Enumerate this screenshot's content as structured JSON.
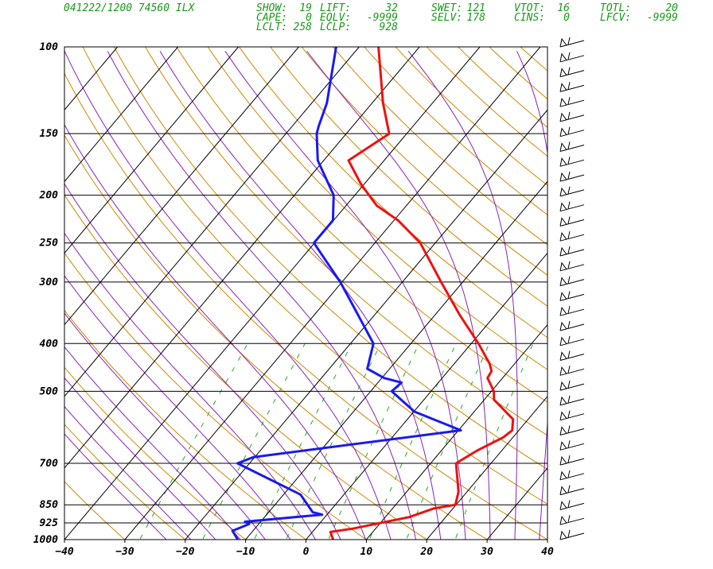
{
  "header": {
    "station_line": "041222/1200 74560  ILX",
    "rows": [
      [
        {
          "k": "SHOW:",
          "v": "19"
        },
        {
          "k": "LIFT:",
          "v": "32"
        },
        {
          "k": "SWET:",
          "v": "121"
        },
        {
          "k": "VTOT:",
          "v": "16"
        },
        {
          "k": "TOTL:",
          "v": "20"
        }
      ],
      [
        {
          "k": "CAPE:",
          "v": "0"
        },
        {
          "k": "EQLV:",
          "v": "-9999"
        },
        {
          "k": "SELV:",
          "v": "178"
        },
        {
          "k": "CINS:",
          "v": "0"
        },
        {
          "k": "LFCV:",
          "v": "-9999"
        }
      ],
      [
        {
          "k": "LCLT:",
          "v": "258"
        },
        {
          "k": "LCLP:",
          "v": "928"
        }
      ]
    ]
  },
  "chart_data": {
    "type": "line",
    "subtype": "skew-T log-P sounding",
    "x_axis": {
      "label": "",
      "range": [
        -40,
        40
      ],
      "ticks": [
        -40,
        -30,
        -20,
        -10,
        0,
        10,
        20,
        30,
        40
      ],
      "unit": "°C"
    },
    "y_axis": {
      "label": "",
      "scale": "log",
      "range": [
        1000,
        100
      ],
      "ticks": [
        1000,
        925,
        850,
        700,
        500,
        400,
        300,
        250,
        200,
        150,
        100
      ],
      "unit": "hPa"
    },
    "grid": true,
    "background_lines": [
      "skewed isotherms (black)",
      "dry adiabats (orange)",
      "moist adiabats (purple)",
      "mixing ratio lines (green dashed)"
    ],
    "colors": {
      "temperature": "#ee1111",
      "dewpoint": "#1a1aee",
      "isotherm": "#000000",
      "dry_adiabat": "#cc8800",
      "moist_adiabat": "#8822bb",
      "mixing_ratio": "#22aa22",
      "header_text": "#1a9a1a"
    },
    "series": [
      {
        "role": "temperature",
        "points": [
          [
            1000,
            4.5
          ],
          [
            965,
            3.0
          ],
          [
            950,
            6.2
          ],
          [
            900,
            14.0
          ],
          [
            865,
            16.8
          ],
          [
            850,
            19.9
          ],
          [
            800,
            18.6
          ],
          [
            700,
            14.2
          ],
          [
            660,
            15.9
          ],
          [
            620,
            18.4
          ],
          [
            600,
            18.9
          ],
          [
            570,
            17.5
          ],
          [
            520,
            11.6
          ],
          [
            500,
            10.4
          ],
          [
            480,
            8.5
          ],
          [
            470,
            7.5
          ],
          [
            455,
            7.2
          ],
          [
            440,
            5.9
          ],
          [
            400,
            1.2
          ],
          [
            350,
            -5.9
          ],
          [
            300,
            -13.6
          ],
          [
            250,
            -22.5
          ],
          [
            225,
            -29.3
          ],
          [
            210,
            -34.9
          ],
          [
            190,
            -40.5
          ],
          [
            170,
            -45.9
          ],
          [
            150,
            -42.9
          ],
          [
            130,
            -48.2
          ],
          [
            100,
            -56.8
          ]
        ]
      },
      {
        "role": "dewpoint",
        "points": [
          [
            1000,
            -11.3
          ],
          [
            960,
            -13.4
          ],
          [
            930,
            -11.6
          ],
          [
            920,
            -12.6
          ],
          [
            890,
            -0.8
          ],
          [
            880,
            -2.7
          ],
          [
            810,
            -7.2
          ],
          [
            700,
            -22.0
          ],
          [
            680,
            -20.2
          ],
          [
            600,
            10.4
          ],
          [
            550,
            0.1
          ],
          [
            500,
            -6.5
          ],
          [
            480,
            -6.1
          ],
          [
            470,
            -9.6
          ],
          [
            450,
            -13.7
          ],
          [
            400,
            -16.2
          ],
          [
            300,
            -30.3
          ],
          [
            250,
            -40.1
          ],
          [
            225,
            -40.1
          ],
          [
            200,
            -43.5
          ],
          [
            170,
            -51.0
          ],
          [
            150,
            -54.9
          ],
          [
            145,
            -55.6
          ],
          [
            130,
            -57.5
          ],
          [
            100,
            -63.8
          ]
        ]
      }
    ],
    "wind_barbs": {
      "column": "right",
      "count": 34,
      "units": "kt"
    }
  }
}
